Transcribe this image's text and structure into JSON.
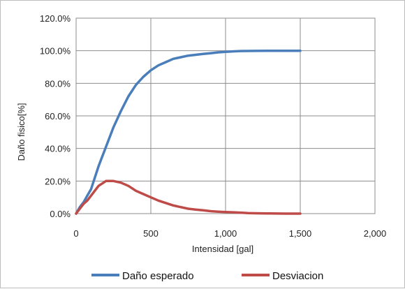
{
  "chart_data": {
    "type": "line",
    "title": "",
    "xlabel": "Intensidad [gal]",
    "ylabel": "Daño fisico[%]",
    "xlim": [
      0,
      2000
    ],
    "ylim": [
      0,
      120
    ],
    "x_ticks": [
      0,
      500,
      1000,
      1500,
      2000
    ],
    "x_tick_labels": [
      "0",
      "500",
      "1,000",
      "1,500",
      "2,000"
    ],
    "y_ticks": [
      0,
      20,
      40,
      60,
      80,
      100,
      120
    ],
    "y_tick_labels": [
      "0.0%",
      "20.0%",
      "40.0%",
      "60.0%",
      "80.0%",
      "100.0%",
      "120.0%"
    ],
    "grid": true,
    "legend_position": "bottom",
    "series": [
      {
        "name": "Daño esperado",
        "color": "#4a7ebb",
        "x": [
          0,
          25,
          50,
          75,
          100,
          150,
          200,
          250,
          300,
          350,
          400,
          450,
          500,
          550,
          600,
          650,
          700,
          750,
          800,
          850,
          900,
          950,
          1000,
          1050,
          1100,
          1200,
          1300,
          1400,
          1500
        ],
        "y": [
          0,
          4,
          7,
          11,
          15,
          29,
          41,
          53,
          63,
          72,
          79,
          84,
          88,
          91,
          93,
          95,
          96,
          97,
          97.5,
          98,
          98.5,
          99,
          99.3,
          99.6,
          99.8,
          99.9,
          100,
          100,
          100
        ]
      },
      {
        "name": "Desviacion",
        "color": "#be4b48",
        "x": [
          0,
          25,
          50,
          75,
          100,
          150,
          200,
          250,
          300,
          350,
          400,
          450,
          500,
          550,
          600,
          650,
          700,
          750,
          800,
          850,
          900,
          950,
          1000,
          1050,
          1100,
          1150,
          1200,
          1300,
          1400,
          1500
        ],
        "y": [
          0,
          3,
          6,
          8,
          11,
          17,
          20,
          20,
          19,
          17,
          14,
          12,
          10,
          8,
          6.5,
          5,
          4,
          3,
          2.5,
          2,
          1.5,
          1.2,
          1,
          0.8,
          0.6,
          0.3,
          0.2,
          0.1,
          0,
          0
        ]
      }
    ]
  }
}
